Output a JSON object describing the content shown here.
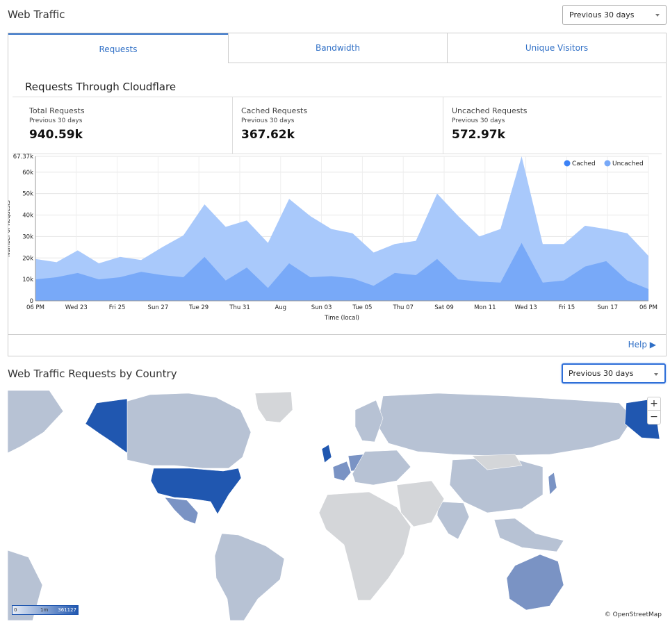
{
  "header": {
    "title": "Web Traffic",
    "period": "Previous 30 days"
  },
  "tabs": [
    {
      "label": "Requests",
      "active": true
    },
    {
      "label": "Bandwidth",
      "active": false
    },
    {
      "label": "Unique Visitors",
      "active": false
    }
  ],
  "section_title": "Requests Through Cloudflare",
  "stats": [
    {
      "label": "Total Requests",
      "sub": "Previous 30 days",
      "value": "940.59k"
    },
    {
      "label": "Cached Requests",
      "sub": "Previous 30 days",
      "value": "367.62k"
    },
    {
      "label": "Uncached Requests",
      "sub": "Previous 30 days",
      "value": "572.97k"
    }
  ],
  "chart_data": {
    "type": "area",
    "ylabel": "Number of Requests",
    "xlabel": "Time (local)",
    "ylim": [
      0,
      67370
    ],
    "y_ticks": [
      "0",
      "10k",
      "20k",
      "30k",
      "40k",
      "50k",
      "60k",
      "67.37k"
    ],
    "x_ticks": [
      "06 PM",
      "Wed 23",
      "Fri 25",
      "Sun 27",
      "Tue 29",
      "Thu 31",
      "Aug",
      "Sun 03",
      "Tue 05",
      "Thu 07",
      "Sat 09",
      "Mon 11",
      "Wed 13",
      "Fri 15",
      "Sun 17",
      "06 PM"
    ],
    "legend": [
      "Cached",
      "Uncached"
    ],
    "legend_position": "top-right",
    "colors": {
      "cached": "#78a9f8",
      "uncached": "#a9c9fb"
    },
    "grid": true,
    "series": [
      {
        "name": "Cached",
        "values": [
          10000,
          11000,
          13000,
          10000,
          11000,
          13500,
          12000,
          11000,
          20500,
          9500,
          15500,
          6000,
          17500,
          11000,
          11500,
          10500,
          7000,
          13000,
          12000,
          19500,
          10000,
          9000,
          8500,
          27000,
          8500,
          9500,
          16000,
          18500,
          9500,
          5500
        ]
      },
      {
        "name": "Total",
        "values": [
          19500,
          18000,
          23500,
          17500,
          20500,
          19000,
          25000,
          30500,
          45000,
          34500,
          37500,
          27000,
          47500,
          39500,
          33500,
          31500,
          22500,
          26500,
          28000,
          50000,
          39500,
          30000,
          33500,
          67370,
          26500,
          26500,
          35000,
          33500,
          31500,
          21000
        ]
      }
    ]
  },
  "help": {
    "label": "Help"
  },
  "country": {
    "title": "Web Traffic Requests by Country",
    "period": "Previous 30 days"
  },
  "map": {
    "zoom_in": "+",
    "zoom_out": "−",
    "attribution": "© OpenStreetMap",
    "legend_min": "0",
    "legend_mid": "1m",
    "legend_max": "361127",
    "colors": {
      "high": "#2057b0",
      "mid": "#7a93c4",
      "low": "#b7c2d4",
      "none": "#d4d6d9"
    }
  }
}
